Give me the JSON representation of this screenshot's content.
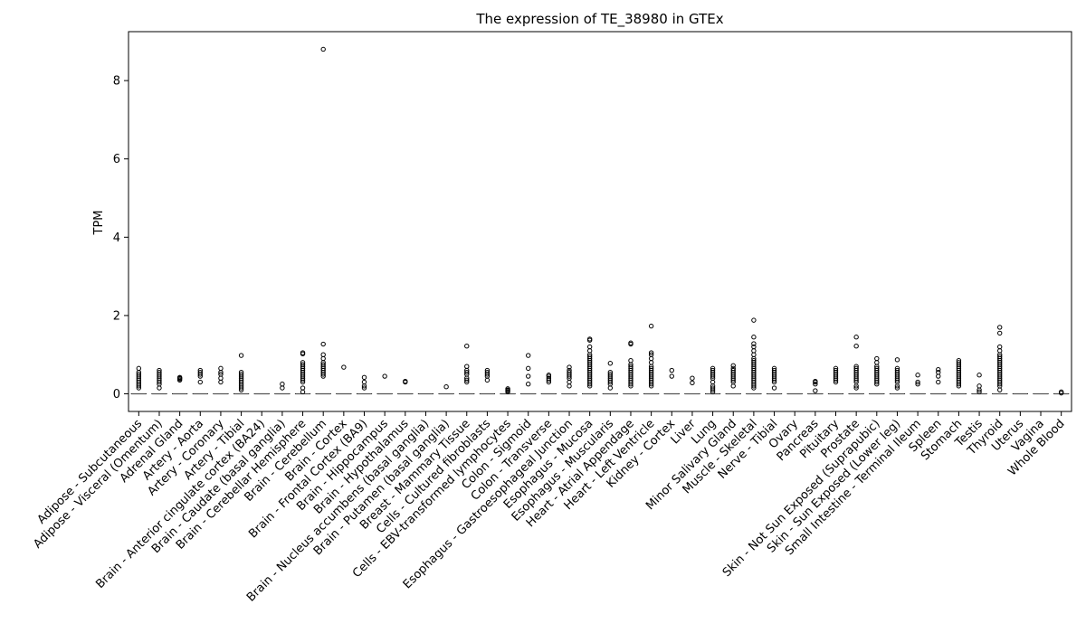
{
  "chart_data": {
    "type": "box",
    "title": "The expression of TE_38980 in GTEx",
    "xlabel": "",
    "ylabel": "TPM",
    "ylim": [
      -0.45,
      9.25
    ],
    "yticks": [
      0,
      2,
      4,
      6,
      8
    ],
    "grid": false,
    "categories": [
      "Adipose - Subcutaneous",
      "Adipose - Visceral (Omentum)",
      "Adrenal Gland",
      "Artery - Aorta",
      "Artery - Coronary",
      "Artery - Tibial",
      "Brain - Anterior cingulate cortex (BA24)",
      "Brain - Caudate (basal ganglia)",
      "Brain - Cerebellar Hemisphere",
      "Brain - Cerebellum",
      "Brain - Cortex",
      "Brain - Frontal Cortex (BA9)",
      "Brain - Hippocampus",
      "Brain - Hypothalamus",
      "Brain - Nucleus accumbens (basal ganglia)",
      "Brain - Putamen (basal ganglia)",
      "Breast - Mammary Tissue",
      "Cells - Cultured fibroblasts",
      "Cells - EBV-transformed lymphocytes",
      "Colon - Sigmoid",
      "Colon - Transverse",
      "Esophagus - Gastroesophageal Junction",
      "Esophagus - Mucosa",
      "Esophagus - Muscularis",
      "Heart - Atrial Appendage",
      "Heart - Left Ventricle",
      "Kidney - Cortex",
      "Liver",
      "Lung",
      "Minor Salivary Gland",
      "Muscle - Skeletal",
      "Nerve - Tibial",
      "Ovary",
      "Pancreas",
      "Pituitary",
      "Prostate",
      "Skin - Not Sun Exposed (Suprapubic)",
      "Skin - Sun Exposed (Lower leg)",
      "Small Intestine - Terminal Ileum",
      "Spleen",
      "Stomach",
      "Testis",
      "Thyroid",
      "Uterus",
      "Vagina",
      "Whole Blood"
    ],
    "box_stats": "median = q1 = q3 = whisker_low = whisker_high = 0 for every tissue",
    "outliers": [
      [
        0.15,
        0.2,
        0.25,
        0.3,
        0.35,
        0.4,
        0.45,
        0.5,
        0.55,
        0.65
      ],
      [
        0.15,
        0.25,
        0.3,
        0.35,
        0.4,
        0.45,
        0.5,
        0.55,
        0.6
      ],
      [
        0.35,
        0.38,
        0.4,
        0.42
      ],
      [
        0.3,
        0.45,
        0.5,
        0.55,
        0.6
      ],
      [
        0.3,
        0.4,
        0.5,
        0.55,
        0.65
      ],
      [
        0.1,
        0.15,
        0.2,
        0.25,
        0.3,
        0.35,
        0.4,
        0.45,
        0.5,
        0.55,
        0.98
      ],
      [],
      [
        0.15,
        0.25
      ],
      [
        0.05,
        0.15,
        0.3,
        0.35,
        0.4,
        0.45,
        0.5,
        0.55,
        0.6,
        0.65,
        0.7,
        0.75,
        0.8,
        1.02,
        1.05
      ],
      [
        0.45,
        0.5,
        0.55,
        0.6,
        0.65,
        0.7,
        0.75,
        0.8,
        0.9,
        1.0,
        1.27,
        8.8
      ],
      [
        0.68
      ],
      [
        0.15,
        0.2,
        0.3,
        0.42
      ],
      [
        0.45
      ],
      [
        0.3,
        0.32
      ],
      [],
      [
        0.18
      ],
      [
        0.3,
        0.35,
        0.4,
        0.5,
        0.55,
        0.6,
        0.7,
        1.22
      ],
      [
        0.35,
        0.45,
        0.5,
        0.55,
        0.6
      ],
      [
        0.05,
        0.08,
        0.1,
        0.13
      ],
      [
        0.25,
        0.45,
        0.65,
        0.98
      ],
      [
        0.3,
        0.35,
        0.4,
        0.45,
        0.48
      ],
      [
        0.2,
        0.3,
        0.4,
        0.45,
        0.5,
        0.55,
        0.6,
        0.68
      ],
      [
        0.2,
        0.25,
        0.3,
        0.35,
        0.4,
        0.45,
        0.5,
        0.55,
        0.6,
        0.65,
        0.7,
        0.75,
        0.8,
        0.85,
        0.9,
        0.95,
        1.0,
        1.1,
        1.2,
        1.37,
        1.4
      ],
      [
        0.15,
        0.25,
        0.3,
        0.35,
        0.4,
        0.45,
        0.5,
        0.55,
        0.78
      ],
      [
        0.2,
        0.25,
        0.3,
        0.35,
        0.4,
        0.45,
        0.5,
        0.55,
        0.6,
        0.65,
        0.7,
        0.75,
        0.85,
        1.27,
        1.3
      ],
      [
        0.2,
        0.25,
        0.3,
        0.35,
        0.4,
        0.45,
        0.5,
        0.55,
        0.6,
        0.65,
        0.7,
        0.8,
        0.9,
        1.0,
        1.05,
        1.73
      ],
      [
        0.45,
        0.6
      ],
      [
        0.28,
        0.4
      ],
      [
        0.05,
        0.1,
        0.15,
        0.2,
        0.3,
        0.4,
        0.45,
        0.5,
        0.55,
        0.6,
        0.65
      ],
      [
        0.2,
        0.3,
        0.35,
        0.4,
        0.45,
        0.5,
        0.55,
        0.6,
        0.65,
        0.72
      ],
      [
        0.15,
        0.2,
        0.25,
        0.3,
        0.35,
        0.4,
        0.45,
        0.5,
        0.55,
        0.6,
        0.65,
        0.7,
        0.75,
        0.8,
        0.85,
        0.9,
        1.0,
        1.1,
        1.2,
        1.28,
        1.45,
        1.88
      ],
      [
        0.15,
        0.3,
        0.35,
        0.4,
        0.45,
        0.5,
        0.55,
        0.6,
        0.65
      ],
      [],
      [
        0.08,
        0.25,
        0.3,
        0.32
      ],
      [
        0.3,
        0.35,
        0.4,
        0.45,
        0.5,
        0.55,
        0.6,
        0.65
      ],
      [
        0.15,
        0.2,
        0.3,
        0.35,
        0.4,
        0.45,
        0.5,
        0.55,
        0.6,
        0.65,
        0.7,
        1.22,
        1.45
      ],
      [
        0.25,
        0.3,
        0.35,
        0.4,
        0.45,
        0.5,
        0.55,
        0.6,
        0.65,
        0.7,
        0.8,
        0.9
      ],
      [
        0.15,
        0.2,
        0.3,
        0.35,
        0.4,
        0.45,
        0.5,
        0.55,
        0.6,
        0.65,
        0.87
      ],
      [
        0.25,
        0.3,
        0.48
      ],
      [
        0.3,
        0.45,
        0.55,
        0.62
      ],
      [
        0.2,
        0.25,
        0.3,
        0.35,
        0.4,
        0.45,
        0.5,
        0.55,
        0.6,
        0.65,
        0.7,
        0.75,
        0.8,
        0.85
      ],
      [
        0.05,
        0.1,
        0.2,
        0.48
      ],
      [
        0.1,
        0.2,
        0.25,
        0.3,
        0.35,
        0.4,
        0.45,
        0.5,
        0.55,
        0.6,
        0.65,
        0.7,
        0.75,
        0.8,
        0.85,
        0.9,
        0.95,
        1.0,
        1.1,
        1.2,
        1.55,
        1.7
      ],
      [],
      [],
      [
        0.02,
        0.05
      ]
    ]
  }
}
